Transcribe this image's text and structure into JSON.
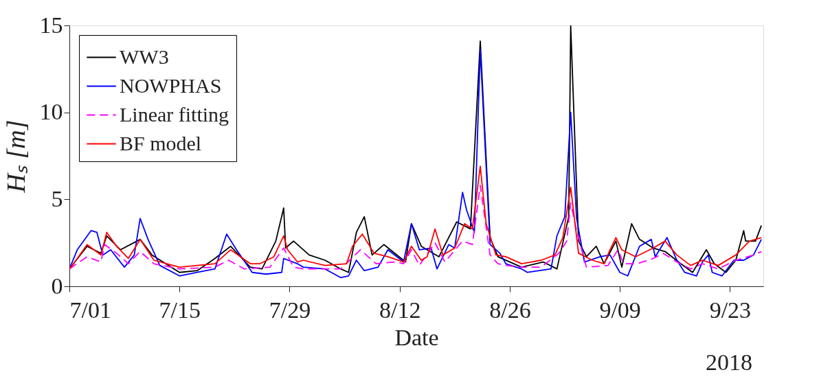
{
  "chart_data": {
    "type": "line",
    "xlabel": "Date",
    "ylabel": "Hₛ [m]",
    "annotations": [
      "2018"
    ],
    "xlim": [
      "2018-07-01T00:00",
      "2018-09-27T06:00"
    ],
    "xticks": [
      {
        "value": "2018-07-01T00:00",
        "label": "7/01"
      },
      {
        "value": "2018-07-15T00:00",
        "label": "7/15"
      },
      {
        "value": "2018-07-29T00:00",
        "label": "7/29"
      },
      {
        "value": "2018-08-12T00:00",
        "label": "8/12"
      },
      {
        "value": "2018-08-26T00:00",
        "label": "8/26"
      },
      {
        "value": "2018-09-09T00:00",
        "label": "9/09"
      },
      {
        "value": "2018-09-23T00:00",
        "label": "9/23"
      }
    ],
    "ylim": [
      0,
      15
    ],
    "yticks": [
      0,
      5,
      10,
      15
    ],
    "grid": false,
    "legend": "top left",
    "series": [
      {
        "name": "WW3",
        "color": "#000000",
        "line_style": "solid",
        "x": [
          "2018-07-01T00:00",
          "2018-07-03T06:00",
          "2018-07-05T00:00",
          "2018-07-05T18:00",
          "2018-07-07T12:00",
          "2018-07-10T00:00",
          "2018-07-11T12:00",
          "2018-07-13T06:00",
          "2018-07-15T00:00",
          "2018-07-17T06:00",
          "2018-07-19T12:00",
          "2018-07-21T12:00",
          "2018-07-24T00:00",
          "2018-07-25T12:00",
          "2018-07-27T06:00",
          "2018-07-28T06:00",
          "2018-07-28T12:00",
          "2018-07-29T12:00",
          "2018-07-31T12:00",
          "2018-08-02T12:00",
          "2018-08-04T12:00",
          "2018-08-05T12:00",
          "2018-08-06T12:00",
          "2018-08-07T12:00",
          "2018-08-08T12:00",
          "2018-08-10T00:00",
          "2018-08-12T18:00",
          "2018-08-13T12:00",
          "2018-08-14T18:00",
          "2018-08-17T00:00",
          "2018-08-19T06:00",
          "2018-08-21T00:00",
          "2018-08-22T06:00",
          "2018-08-23T12:00",
          "2018-08-24T12:00",
          "2018-08-27T12:00",
          "2018-08-30T06:00",
          "2018-09-01T00:00",
          "2018-09-02T12:00",
          "2018-09-02T18:00",
          "2018-09-03T18:00",
          "2018-09-04T18:00",
          "2018-09-06T00:00",
          "2018-09-07T00:00",
          "2018-09-08T12:00",
          "2018-09-09T06:00",
          "2018-09-10T12:00",
          "2018-09-11T12:00",
          "2018-09-13T06:00",
          "2018-09-14T18:00",
          "2018-09-16T18:00",
          "2018-09-18T06:00",
          "2018-09-20T00:00",
          "2018-09-21T00:00",
          "2018-09-22T12:00",
          "2018-09-23T18:00",
          "2018-09-24T18:00",
          "2018-09-25T00:00",
          "2018-09-26T06:00",
          "2018-09-27T00:00"
        ],
        "values": [
          1.0,
          2.3,
          1.9,
          2.9,
          2.1,
          2.7,
          1.8,
          1.3,
          0.8,
          0.9,
          1.6,
          2.3,
          1.1,
          1.0,
          2.6,
          4.5,
          2.2,
          2.6,
          1.8,
          1.5,
          1.0,
          0.8,
          3.1,
          4.0,
          1.8,
          2.4,
          1.4,
          3.6,
          2.3,
          1.7,
          3.7,
          3.3,
          14.1,
          2.8,
          1.7,
          1.1,
          1.4,
          1.0,
          4.0,
          15.0,
          2.6,
          1.7,
          2.3,
          1.3,
          2.6,
          1.1,
          3.6,
          2.7,
          2.2,
          2.0,
          1.3,
          0.8,
          2.1,
          1.3,
          0.8,
          1.5,
          3.2,
          2.6,
          2.6,
          3.5
        ]
      },
      {
        "name": "NOWPHAS",
        "color": "#0000ff",
        "line_style": "solid",
        "x": [
          "2018-07-01T00:00",
          "2018-07-02T00:00",
          "2018-07-03T18:00",
          "2018-07-04T12:00",
          "2018-07-05T06:00",
          "2018-07-06T06:00",
          "2018-07-08T00:00",
          "2018-07-09T06:00",
          "2018-07-10T00:00",
          "2018-07-11T00:00",
          "2018-07-12T12:00",
          "2018-07-15T00:00",
          "2018-07-17T06:00",
          "2018-07-19T12:00",
          "2018-07-21T00:00",
          "2018-07-22T06:00",
          "2018-07-24T06:00",
          "2018-07-26T00:00",
          "2018-07-28T00:00",
          "2018-07-28T06:00",
          "2018-07-30T00:00",
          "2018-07-30T18:00",
          "2018-08-02T12:00",
          "2018-08-04T12:00",
          "2018-08-05T12:00",
          "2018-08-06T12:00",
          "2018-08-07T12:00",
          "2018-08-09T06:00",
          "2018-08-10T12:00",
          "2018-08-12T12:00",
          "2018-08-13T12:00",
          "2018-08-14T12:00",
          "2018-08-16T00:00",
          "2018-08-16T18:00",
          "2018-08-18T06:00",
          "2018-08-19T00:00",
          "2018-08-20T00:00",
          "2018-08-20T12:00",
          "2018-08-21T12:00",
          "2018-08-22T06:00",
          "2018-08-23T12:00",
          "2018-08-24T18:00",
          "2018-08-25T12:00",
          "2018-08-27T12:00",
          "2018-08-28T06:00",
          "2018-08-31T06:00",
          "2018-09-01T00:00",
          "2018-09-02T00:00",
          "2018-09-02T18:00",
          "2018-09-03T12:00",
          "2018-09-04T12:00",
          "2018-09-06T12:00",
          "2018-09-07T18:00",
          "2018-09-09T00:00",
          "2018-09-10T00:00",
          "2018-09-11T12:00",
          "2018-09-13T00:00",
          "2018-09-13T12:00",
          "2018-09-15T00:00",
          "2018-09-16T06:00",
          "2018-09-17T06:00",
          "2018-09-18T18:00",
          "2018-09-19T12:00",
          "2018-09-20T06:00",
          "2018-09-20T18:00",
          "2018-09-22T00:00",
          "2018-09-23T12:00",
          "2018-09-24T18:00",
          "2018-09-26T00:00",
          "2018-09-27T00:00"
        ],
        "values": [
          1.0,
          2.1,
          3.2,
          3.1,
          1.8,
          2.1,
          1.1,
          1.8,
          3.9,
          2.7,
          1.2,
          0.6,
          0.8,
          1.0,
          3.0,
          2.1,
          0.8,
          0.7,
          0.8,
          1.6,
          1.3,
          1.1,
          1.0,
          0.5,
          0.6,
          1.5,
          0.9,
          1.1,
          2.1,
          1.4,
          3.6,
          2.1,
          2.2,
          1.0,
          2.4,
          2.2,
          5.4,
          4.4,
          3.1,
          13.6,
          2.4,
          1.9,
          1.3,
          1.0,
          0.8,
          1.0,
          2.9,
          4.0,
          10.0,
          3.9,
          1.4,
          1.7,
          1.8,
          0.8,
          0.6,
          2.3,
          2.7,
          1.7,
          2.8,
          1.5,
          0.8,
          0.6,
          1.4,
          1.8,
          0.8,
          0.6,
          1.5,
          1.5,
          1.8,
          2.7
        ]
      },
      {
        "name": "Linear fitting",
        "color": "#ff00ff",
        "line_style": "dashed",
        "x": [
          "2018-07-01T00:00",
          "2018-07-03T06:00",
          "2018-07-05T00:00",
          "2018-07-05T12:00",
          "2018-07-07T00:00",
          "2018-07-08T12:00",
          "2018-07-10T00:00",
          "2018-07-11T18:00",
          "2018-07-15T00:00",
          "2018-07-19T12:00",
          "2018-07-21T06:00",
          "2018-07-23T06:00",
          "2018-07-26T12:00",
          "2018-07-28T06:00",
          "2018-07-29T12:00",
          "2018-07-30T18:00",
          "2018-08-04T12:00",
          "2018-08-07T00:00",
          "2018-08-09T00:00",
          "2018-08-11T06:00",
          "2018-08-12T12:00",
          "2018-08-13T12:00",
          "2018-08-14T12:00",
          "2018-08-16T12:00",
          "2018-08-17T18:00",
          "2018-08-20T00:00",
          "2018-08-21T06:00",
          "2018-08-22T06:00",
          "2018-08-23T12:00",
          "2018-08-24T12:00",
          "2018-08-27T00:00",
          "2018-08-30T00:00",
          "2018-09-01T06:00",
          "2018-09-02T06:00",
          "2018-09-02T18:00",
          "2018-09-03T12:00",
          "2018-09-04T18:00",
          "2018-09-07T12:00",
          "2018-09-08T18:00",
          "2018-09-09T12:00",
          "2018-09-11T06:00",
          "2018-09-13T06:00",
          "2018-09-14T12:00",
          "2018-09-16T06:00",
          "2018-09-18T00:00",
          "2018-09-19T12:00",
          "2018-09-21T12:00",
          "2018-09-23T18:00",
          "2018-09-26T00:00",
          "2018-09-27T00:00"
        ],
        "values": [
          1.0,
          1.7,
          1.4,
          2.4,
          1.9,
          1.3,
          2.0,
          1.3,
          1.0,
          1.1,
          1.5,
          1.0,
          1.1,
          2.2,
          1.1,
          1.0,
          1.0,
          2.1,
          1.3,
          1.4,
          1.3,
          2.1,
          1.2,
          2.5,
          1.4,
          2.6,
          2.4,
          5.8,
          1.8,
          1.3,
          1.1,
          1.1,
          1.9,
          2.6,
          4.8,
          3.2,
          1.1,
          1.2,
          2.1,
          1.3,
          1.3,
          1.6,
          1.9,
          1.4,
          1.0,
          1.3,
          1.0,
          1.5,
          1.8,
          2.0
        ]
      },
      {
        "name": "BF model",
        "color": "#ff0000",
        "line_style": "solid",
        "x": [
          "2018-07-01T00:00",
          "2018-07-02T00:00",
          "2018-07-03T06:00",
          "2018-07-05T00:00",
          "2018-07-05T18:00",
          "2018-07-07T00:00",
          "2018-07-08T12:00",
          "2018-07-10T00:00",
          "2018-07-11T18:00",
          "2018-07-15T00:00",
          "2018-07-19T12:00",
          "2018-07-21T12:00",
          "2018-07-24T00:00",
          "2018-07-25T06:00",
          "2018-07-27T00:00",
          "2018-07-28T06:00",
          "2018-07-28T18:00",
          "2018-07-30T00:00",
          "2018-07-30T18:00",
          "2018-08-02T12:00",
          "2018-08-05T06:00",
          "2018-08-06T00:00",
          "2018-08-07T06:00",
          "2018-08-08T18:00",
          "2018-08-10T12:00",
          "2018-08-12T12:00",
          "2018-08-13T12:00",
          "2018-08-14T18:00",
          "2018-08-15T12:00",
          "2018-08-16T12:00",
          "2018-08-17T12:00",
          "2018-08-19T00:00",
          "2018-08-20T06:00",
          "2018-08-21T06:00",
          "2018-08-22T06:00",
          "2018-08-23T00:00",
          "2018-08-24T06:00",
          "2018-08-25T12:00",
          "2018-08-27T12:00",
          "2018-08-30T00:00",
          "2018-08-31T18:00",
          "2018-09-01T18:00",
          "2018-09-02T18:00",
          "2018-09-03T18:00",
          "2018-09-05T12:00",
          "2018-09-07T00:00",
          "2018-09-07T18:00",
          "2018-09-08T12:00",
          "2018-09-09T06:00",
          "2018-09-11T00:00",
          "2018-09-13T06:00",
          "2018-09-14T18:00",
          "2018-09-16T06:00",
          "2018-09-18T00:00",
          "2018-09-19T12:00",
          "2018-09-21T12:00",
          "2018-09-23T18:00",
          "2018-09-25T12:00",
          "2018-09-27T00:00"
        ],
        "values": [
          1.0,
          1.6,
          2.4,
          1.8,
          3.1,
          2.3,
          1.6,
          2.7,
          1.5,
          1.1,
          1.3,
          2.1,
          1.3,
          1.3,
          1.7,
          2.9,
          2.1,
          1.4,
          1.5,
          1.2,
          1.3,
          2.3,
          3.0,
          1.9,
          1.7,
          1.4,
          2.3,
          1.5,
          1.7,
          3.3,
          1.8,
          2.2,
          3.6,
          3.3,
          6.9,
          3.6,
          1.8,
          1.7,
          1.3,
          1.5,
          1.8,
          2.8,
          5.7,
          1.9,
          1.5,
          1.3,
          2.1,
          2.8,
          2.1,
          1.7,
          2.2,
          2.6,
          1.8,
          1.2,
          1.5,
          1.2,
          1.8,
          2.6,
          2.8
        ]
      }
    ]
  }
}
